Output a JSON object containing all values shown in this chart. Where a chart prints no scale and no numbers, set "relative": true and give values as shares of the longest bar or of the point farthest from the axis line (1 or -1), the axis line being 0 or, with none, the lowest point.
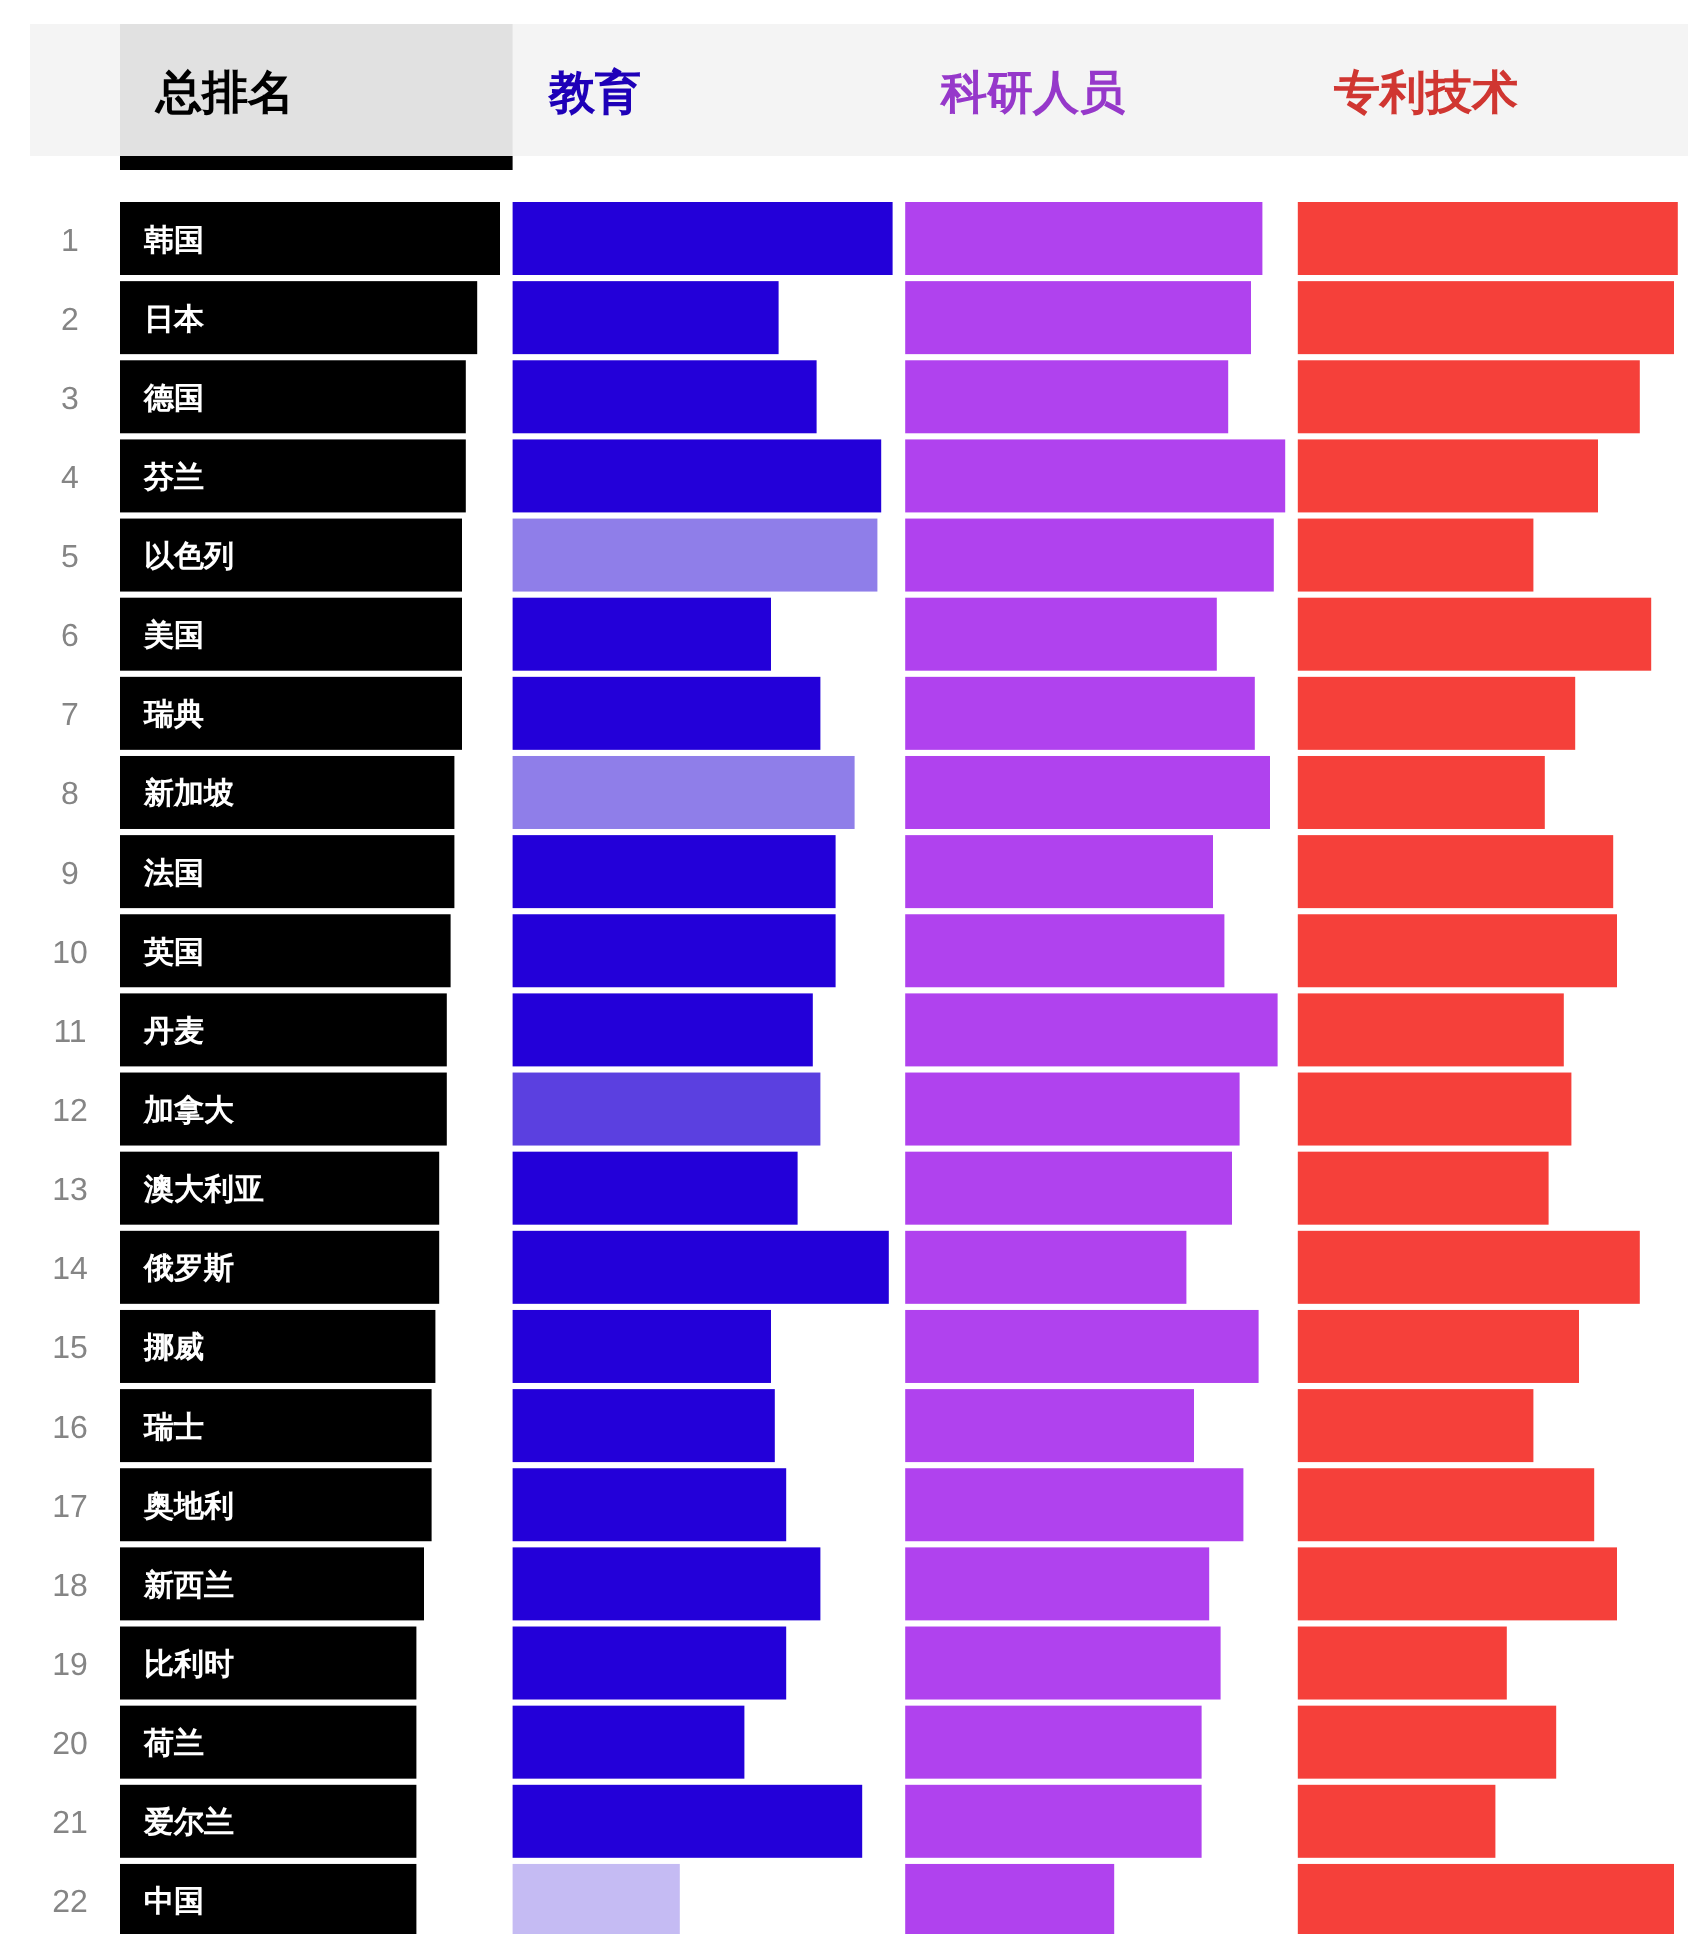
{
  "chart_data": [
    {
      "type": "bar",
      "orientation": "horizontal",
      "relative": true,
      "title": "总排名",
      "color": "#000000",
      "categories": [
        "1",
        "2",
        "3",
        "4",
        "5",
        "6",
        "7",
        "8",
        "9",
        "10",
        "11",
        "12",
        "13",
        "14",
        "15",
        "16",
        "17",
        "18",
        "19",
        "20",
        "21",
        "22"
      ],
      "values": [
        1,
        0.94,
        0.91,
        0.91,
        0.9,
        0.9,
        0.9,
        0.88,
        0.88,
        0.87,
        0.86,
        0.86,
        0.84,
        0.84,
        0.83,
        0.82,
        0.82,
        0.8,
        0.78,
        0.78,
        0.78,
        0.78
      ],
      "annotations": [
        "韩国",
        "日本",
        "德国",
        "芬兰",
        "以色列",
        "美国",
        "瑞典",
        "新加坡",
        "法国",
        "英国",
        "丹麦",
        "加拿大",
        "澳大利亚",
        "俄罗斯",
        "挪威",
        "瑞士",
        "奥地利",
        "新西兰",
        "比利时",
        "荷兰",
        "爱尔兰",
        "中国"
      ]
    },
    {
      "type": "bar",
      "orientation": "horizontal",
      "relative": true,
      "title": "教育",
      "categories": [
        null,
        null,
        null,
        null,
        null,
        null,
        null,
        null,
        null,
        null,
        null,
        null,
        null,
        null,
        null,
        null,
        null,
        null,
        null,
        null,
        null,
        null
      ],
      "values": [
        1,
        0.7,
        0.8,
        0.97,
        0.96,
        0.68,
        0.81,
        0.9,
        0.85,
        0.85,
        0.79,
        0.81,
        0.75,
        0.99,
        0.68,
        0.69,
        0.72,
        0.81,
        0.72,
        0.61,
        0.92,
        0.44
      ],
      "colors": [
        "#2300d9",
        "#2300d9",
        "#2300d9",
        "#2300d9",
        "#8f7ee9",
        "#2300d9",
        "#2300d9",
        "#8f7ee9",
        "#2300d9",
        "#2300d9",
        "#2300d9",
        "#5b40e0",
        "#2300d9",
        "#2300d9",
        "#2300d9",
        "#2300d9",
        "#2300d9",
        "#2300d9",
        "#2300d9",
        "#2300d9",
        "#2300d9",
        "#c5bbf3"
      ]
    },
    {
      "type": "bar",
      "orientation": "horizontal",
      "relative": true,
      "title": "科研人员",
      "color": "#b042ee",
      "categories": [
        null,
        null,
        null,
        null,
        null,
        null,
        null,
        null,
        null,
        null,
        null,
        null,
        null,
        null,
        null,
        null,
        null,
        null,
        null,
        null,
        null,
        null
      ],
      "values": [
        0.94,
        0.91,
        0.85,
        1,
        0.97,
        0.82,
        0.92,
        0.96,
        0.81,
        0.84,
        0.98,
        0.88,
        0.86,
        0.74,
        0.93,
        0.76,
        0.89,
        0.8,
        0.83,
        0.78,
        0.78,
        0.55
      ]
    },
    {
      "type": "bar",
      "orientation": "horizontal",
      "relative": true,
      "title": "专利技术",
      "color": "#f5403a",
      "categories": [
        null,
        null,
        null,
        null,
        null,
        null,
        null,
        null,
        null,
        null,
        null,
        null,
        null,
        null,
        null,
        null,
        null,
        null,
        null,
        null,
        null,
        null
      ],
      "values": [
        1,
        0.99,
        0.9,
        0.79,
        0.62,
        0.93,
        0.73,
        0.65,
        0.83,
        0.84,
        0.7,
        0.72,
        0.66,
        0.9,
        0.74,
        0.62,
        0.78,
        0.84,
        0.55,
        0.68,
        0.52,
        0.99
      ]
    }
  ]
}
